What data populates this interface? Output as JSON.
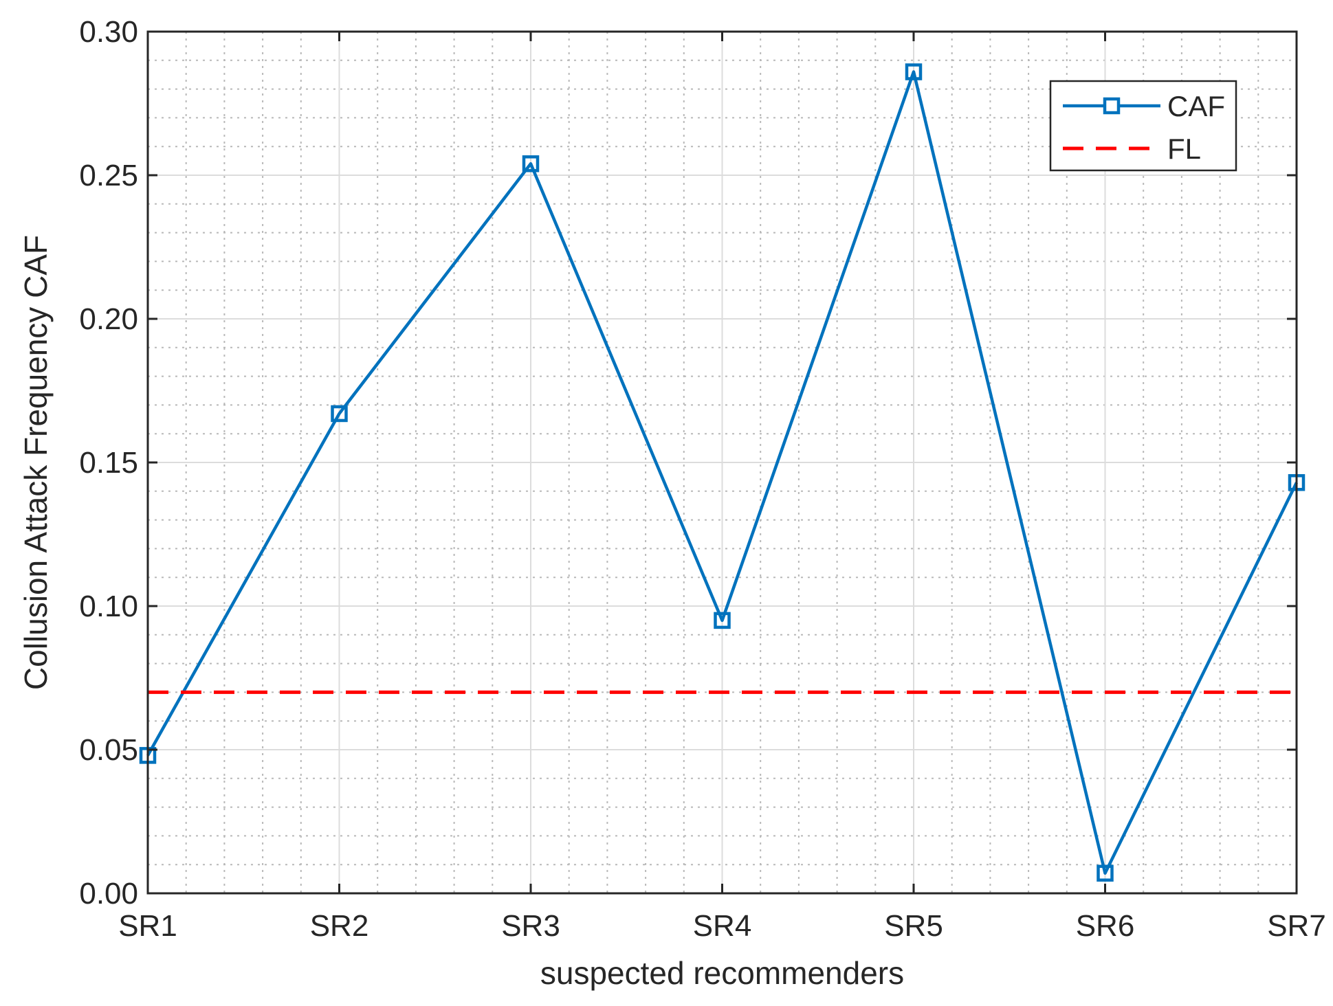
{
  "chart_data": {
    "type": "line",
    "categories": [
      "SR1",
      "SR2",
      "SR3",
      "SR4",
      "SR5",
      "SR6",
      "SR7"
    ],
    "xlabel": "suspected recommenders",
    "ylabel": "Collusion Attack Frequency CAF",
    "ylim": [
      0,
      0.3
    ],
    "yticks": [
      "0.00",
      "0.05",
      "0.10",
      "0.15",
      "0.20",
      "0.25",
      "0.30"
    ],
    "grid": true,
    "minor_grid": true,
    "legend_position": "top-right",
    "series": [
      {
        "name": "CAF",
        "values": [
          0.048,
          0.167,
          0.254,
          0.095,
          0.286,
          0.007,
          0.143
        ],
        "color": "#0072BD",
        "style": "solid",
        "marker": "square"
      },
      {
        "name": "FL",
        "values": [
          0.07,
          0.07,
          0.07,
          0.07,
          0.07,
          0.07,
          0.07
        ],
        "color": "#FF0000",
        "style": "dashed",
        "marker": "none"
      }
    ]
  }
}
